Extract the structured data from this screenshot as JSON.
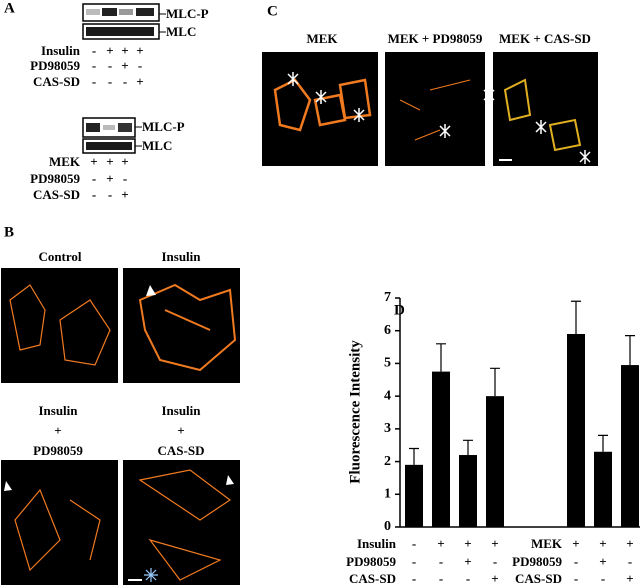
{
  "panel_a": {
    "label": "A",
    "blot1": {
      "bands": [
        "MLC-P",
        "MLC"
      ],
      "rows": [
        {
          "label": "Insulin",
          "signs": [
            "-",
            "+",
            "+",
            "+"
          ]
        },
        {
          "label": "PD98059",
          "signs": [
            "-",
            "-",
            "+",
            "-"
          ]
        },
        {
          "label": "CAS-SD",
          "signs": [
            "-",
            "-",
            "-",
            "+"
          ]
        }
      ]
    },
    "blot2": {
      "bands": [
        "MLC-P",
        "MLC"
      ],
      "rows": [
        {
          "label": "MEK",
          "signs": [
            "+",
            "+",
            "+"
          ]
        },
        {
          "label": "PD98059",
          "signs": [
            "-",
            "+",
            "-"
          ]
        },
        {
          "label": "CAS-SD",
          "signs": [
            "-",
            "-",
            "+"
          ]
        }
      ]
    }
  },
  "panel_b": {
    "label": "B",
    "titles": [
      [
        "Control"
      ],
      [
        "Insulin"
      ],
      [
        "Insulin",
        "+",
        "PD98059"
      ],
      [
        "Insulin",
        "+",
        "CAS-SD"
      ]
    ]
  },
  "panel_c": {
    "label": "C",
    "titles": [
      "MEK",
      "MEK + PD98059",
      "MEK + CAS-SD"
    ]
  },
  "panel_d": {
    "label": "D",
    "rows_left": [
      {
        "label": "Insulin",
        "signs": [
          "-",
          "+",
          "+",
          "+"
        ]
      },
      {
        "label": "PD98059",
        "signs": [
          "-",
          "-",
          "+",
          "-"
        ]
      },
      {
        "label": "CAS-SD",
        "signs": [
          "-",
          "-",
          "-",
          "+"
        ]
      }
    ],
    "rows_right": [
      {
        "label": "MEK",
        "signs": [
          "+",
          "+",
          "+"
        ]
      },
      {
        "label": "PD98059",
        "signs": [
          "-",
          "+",
          "-"
        ]
      },
      {
        "label": "CAS-SD",
        "signs": [
          "-",
          "-",
          "+"
        ]
      }
    ]
  },
  "chart_data": {
    "type": "bar",
    "y_label": "Fluorescence Intensity",
    "categories": [
      null,
      null,
      null,
      null,
      null,
      null,
      null
    ],
    "values": [
      1.9,
      4.75,
      2.2,
      4.0,
      5.9,
      2.3,
      4.95
    ],
    "errors": [
      0.5,
      0.85,
      0.45,
      0.85,
      1.0,
      0.5,
      0.9
    ],
    "color": "#000000",
    "ylim": [
      0,
      7
    ],
    "yticks": [
      0,
      1,
      2,
      3,
      4,
      5,
      6,
      7
    ]
  }
}
